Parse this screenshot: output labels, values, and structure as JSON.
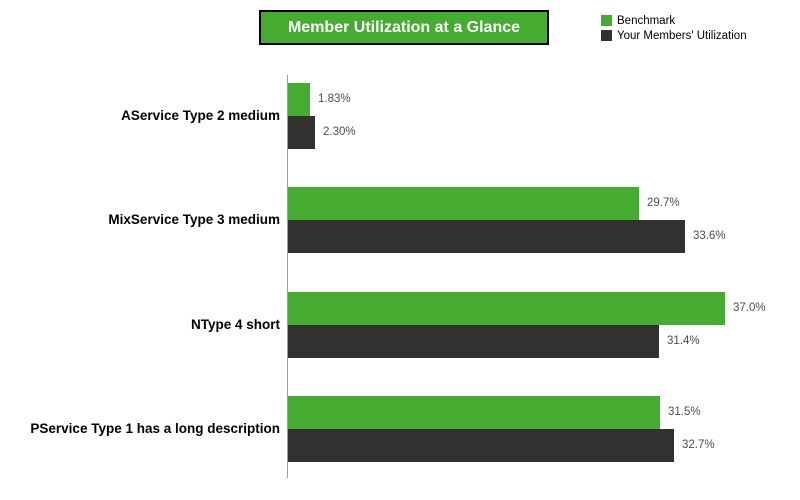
{
  "title": "Member Utilization at a Glance",
  "legend": [
    {
      "label": "Benchmark",
      "color": "#46ab31"
    },
    {
      "label": "Your Members' Utilization",
      "color": "#333030"
    }
  ],
  "colors": {
    "benchmark_green": "#46ab31",
    "members_dark": "#333030",
    "title_background": "#46ab31",
    "axis_gray": "#9e9e9e",
    "value_label_gray": "#4d4d4d"
  },
  "chart_data": {
    "type": "bar",
    "orientation": "horizontal",
    "title": "Member Utilization at a Glance",
    "categories": [
      "AService Type 2 medium",
      "MixService Type 3 medium",
      "NType 4 short",
      "PService Type 1 has a long description"
    ],
    "series": [
      {
        "name": "Benchmark",
        "color": "#46ab31",
        "values": [
          1.83,
          29.7,
          37.0,
          31.5
        ],
        "labels": [
          "1.83%",
          "29.7%",
          "37.0%",
          "31.5%"
        ]
      },
      {
        "name": "Your Members' Utilization",
        "color": "#333030",
        "values": [
          2.3,
          33.6,
          31.4,
          32.7
        ],
        "labels": [
          "2.30%",
          "33.6%",
          "31.4%",
          "32.7%"
        ]
      }
    ],
    "xlabel": "",
    "ylabel": "",
    "xlim": [
      0,
      40
    ],
    "grid": false,
    "legend_position": "top-right",
    "value_labels_shown": true
  }
}
